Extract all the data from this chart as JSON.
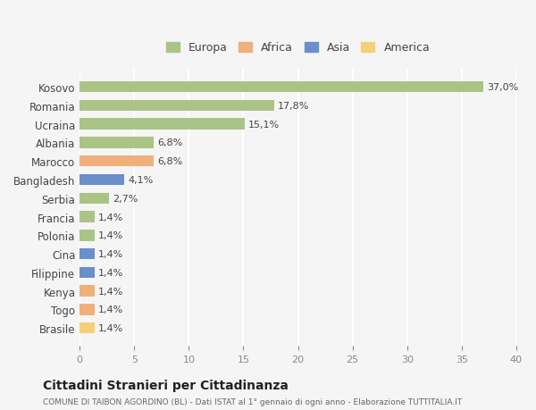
{
  "countries": [
    "Kosovo",
    "Romania",
    "Ucraina",
    "Albania",
    "Marocco",
    "Bangladesh",
    "Serbia",
    "Francia",
    "Polonia",
    "Cina",
    "Filippine",
    "Kenya",
    "Togo",
    "Brasile"
  ],
  "values": [
    37.0,
    17.8,
    15.1,
    6.8,
    6.8,
    4.1,
    2.7,
    1.4,
    1.4,
    1.4,
    1.4,
    1.4,
    1.4,
    1.4
  ],
  "labels": [
    "37,0%",
    "17,8%",
    "15,1%",
    "6,8%",
    "6,8%",
    "4,1%",
    "2,7%",
    "1,4%",
    "1,4%",
    "1,4%",
    "1,4%",
    "1,4%",
    "1,4%",
    "1,4%"
  ],
  "continents": [
    "Europa",
    "Europa",
    "Europa",
    "Europa",
    "Africa",
    "Asia",
    "Europa",
    "Europa",
    "Europa",
    "Asia",
    "Asia",
    "Africa",
    "Africa",
    "America"
  ],
  "continent_colors": {
    "Europa": "#aac486",
    "Africa": "#f0b07a",
    "Asia": "#6a8fca",
    "America": "#f5d07a"
  },
  "legend_order": [
    "Europa",
    "Africa",
    "Asia",
    "America"
  ],
  "title": "Cittadini Stranieri per Cittadinanza",
  "subtitle": "COMUNE DI TAIBON AGORDINO (BL) - Dati ISTAT al 1° gennaio di ogni anno - Elaborazione TUTTITALIA.IT",
  "xlim": [
    0,
    40
  ],
  "xticks": [
    0,
    5,
    10,
    15,
    20,
    25,
    30,
    35,
    40
  ],
  "background_color": "#f5f5f5",
  "grid_color": "#ffffff",
  "bar_height": 0.6
}
